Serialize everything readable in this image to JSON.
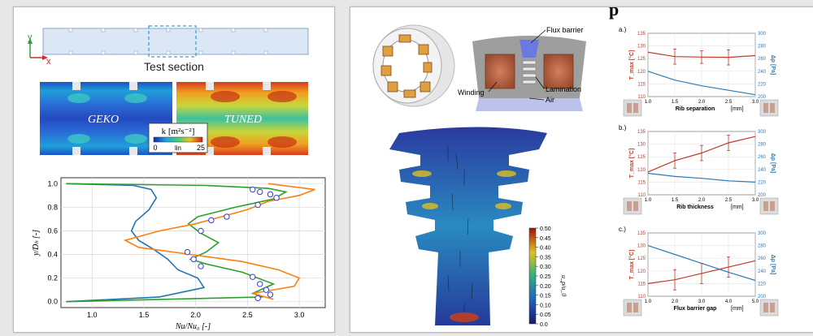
{
  "left": {
    "axis_y_label": "y",
    "axis_x_label": "x",
    "test_section_label": "Test section",
    "field_left_label": "GEKO",
    "field_right_label": "TUNED",
    "colorbar_title": "k [m²s⁻²]",
    "colorbar_min": "0",
    "colorbar_mid": "lin",
    "colorbar_max": "25"
  },
  "right": {
    "banner_fragment": "p",
    "flux_barrier_label": "Flux barrier",
    "winding_label": "Winding",
    "lamination_label": "Lamination",
    "air_label": "Air",
    "velocity_colorbar_label": "u_p/u_0",
    "velocity_colorbar_ticks": [
      "0.50",
      "0.45",
      "0.40",
      "0.35",
      "0.30",
      "0.25",
      "0.20",
      "0.15",
      "0.10",
      "0.05",
      "0.0"
    ]
  },
  "chart_data": [
    {
      "type": "line",
      "xlabel": "Nu/Nu₀ [-]",
      "ylabel": "y/Dₕ [-]",
      "xlim": [
        0.7,
        3.25
      ],
      "ylim": [
        -0.05,
        1.05
      ],
      "x_ticks": [
        "1.0",
        "1.5",
        "2.0",
        "2.5",
        "3.0"
      ],
      "y_ticks": [
        "0.0",
        "0.2",
        "0.4",
        "0.6",
        "0.8",
        "1.0"
      ],
      "grid": true,
      "colors": {
        "blue": "#1f77b4",
        "green": "#2ca02c",
        "orange": "#ff7f0e",
        "marker": "#3b3bd0"
      },
      "series": [
        {
          "values_xy": [
            [
              0.75,
              1.0
            ],
            [
              1.4,
              0.985
            ],
            [
              1.57,
              0.95
            ],
            [
              1.62,
              0.88
            ],
            [
              1.55,
              0.78
            ],
            [
              1.42,
              0.68
            ],
            [
              1.38,
              0.6
            ],
            [
              1.45,
              0.52
            ],
            [
              1.6,
              0.44
            ],
            [
              1.73,
              0.36
            ],
            [
              1.83,
              0.27
            ],
            [
              2.02,
              0.2
            ],
            [
              2.08,
              0.12
            ],
            [
              1.65,
              0.04
            ],
            [
              0.75,
              0.0
            ]
          ]
        },
        {
          "values_xy": [
            [
              0.75,
              1.0
            ],
            [
              2.1,
              0.985
            ],
            [
              2.7,
              0.96
            ],
            [
              2.87,
              0.93
            ],
            [
              2.75,
              0.87
            ],
            [
              2.38,
              0.8
            ],
            [
              2.02,
              0.72
            ],
            [
              1.93,
              0.66
            ],
            [
              2.05,
              0.58
            ],
            [
              2.22,
              0.5
            ],
            [
              2.1,
              0.42
            ],
            [
              1.95,
              0.36
            ],
            [
              2.1,
              0.32
            ],
            [
              2.45,
              0.25
            ],
            [
              2.75,
              0.15
            ],
            [
              2.55,
              0.07
            ],
            [
              2.65,
              0.04
            ],
            [
              0.75,
              0.0
            ]
          ]
        },
        {
          "values_xy": [
            [
              2.7,
              1.0
            ],
            [
              3.15,
              0.95
            ],
            [
              3.0,
              0.9
            ],
            [
              2.7,
              0.85
            ],
            [
              2.5,
              0.78
            ],
            [
              2.25,
              0.72
            ],
            [
              2.0,
              0.66
            ],
            [
              1.65,
              0.6
            ],
            [
              1.32,
              0.52
            ],
            [
              1.45,
              0.46
            ],
            [
              1.95,
              0.4
            ],
            [
              2.45,
              0.34
            ],
            [
              2.8,
              0.27
            ],
            [
              3.0,
              0.2
            ],
            [
              2.95,
              0.13
            ],
            [
              2.55,
              0.07
            ],
            [
              2.75,
              0.02
            ]
          ]
        }
      ],
      "markers_xy": [
        [
          2.55,
          0.95
        ],
        [
          2.62,
          0.93
        ],
        [
          2.72,
          0.91
        ],
        [
          2.78,
          0.88
        ],
        [
          2.6,
          0.82
        ],
        [
          2.3,
          0.72
        ],
        [
          2.15,
          0.69
        ],
        [
          2.05,
          0.6
        ],
        [
          1.92,
          0.42
        ],
        [
          1.98,
          0.36
        ],
        [
          2.05,
          0.3
        ],
        [
          2.55,
          0.21
        ],
        [
          2.62,
          0.15
        ],
        [
          2.68,
          0.1
        ],
        [
          2.72,
          0.06
        ],
        [
          2.6,
          0.03
        ]
      ]
    },
    {
      "type": "line",
      "panel_label": "a.)",
      "xlabel": "Rib separation",
      "xunit": "[mm]",
      "ylabel_left": "T_max [°C]",
      "ylabel_right": "Δp [Pa]",
      "xlim": [
        1.0,
        3.0
      ],
      "x_ticks": [
        "1.0",
        "1.5",
        "2.0",
        "2.5",
        "3.0"
      ],
      "ylim_left": [
        110,
        135
      ],
      "y_ticks_left": [
        "110",
        "115",
        "120",
        "125",
        "130",
        "135"
      ],
      "ylim_right": [
        200,
        300
      ],
      "y_ticks_right": [
        "200",
        "220",
        "240",
        "260",
        "280",
        "300"
      ],
      "series": [
        {
          "axis": "left",
          "color": "#c0392b",
          "x": [
            1.0,
            1.5,
            2.0,
            2.5,
            3.0
          ],
          "values": [
            127.5,
            125.8,
            125.6,
            125.5,
            126.2
          ],
          "err": [
            0,
            3,
            2.5,
            3,
            0
          ]
        },
        {
          "axis": "right",
          "color": "#2a7ab8",
          "x": [
            1.0,
            1.5,
            2.0,
            2.5,
            3.0
          ],
          "values": [
            240,
            226,
            217,
            210,
            203
          ]
        }
      ]
    },
    {
      "type": "line",
      "panel_label": "b.)",
      "xlabel": "Rib thickness",
      "xunit": "[mm]",
      "ylabel_left": "T_max [°C]",
      "ylabel_right": "Δp [Pa]",
      "xlim": [
        1.0,
        3.0
      ],
      "x_ticks": [
        "1.0",
        "1.5",
        "2.0",
        "2.5",
        "3.0"
      ],
      "ylim_left": [
        110,
        135
      ],
      "y_ticks_left": [
        "110",
        "115",
        "120",
        "125",
        "130",
        "135"
      ],
      "ylim_right": [
        200,
        300
      ],
      "y_ticks_right": [
        "200",
        "220",
        "240",
        "260",
        "280",
        "300"
      ],
      "series": [
        {
          "axis": "left",
          "color": "#c0392b",
          "x": [
            1.0,
            1.5,
            2.0,
            2.5,
            3.0
          ],
          "values": [
            119,
            123.5,
            126.5,
            130.5,
            133
          ],
          "err": [
            0,
            3,
            3,
            3,
            0
          ]
        },
        {
          "axis": "right",
          "color": "#2a7ab8",
          "x": [
            1.0,
            1.5,
            2.0,
            2.5,
            3.0
          ],
          "values": [
            234,
            229,
            226,
            222,
            220
          ]
        }
      ]
    },
    {
      "type": "line",
      "panel_label": "c.)",
      "xlabel": "Flux barrier gap",
      "xunit": "[mm]",
      "ylabel_left": "T_max [°C]",
      "ylabel_right": "Δp [Pa]",
      "xlim": [
        1.0,
        5.0
      ],
      "x_ticks": [
        "1.0",
        "2.0",
        "3.0",
        "4.0",
        "5.0"
      ],
      "ylim_left": [
        110,
        135
      ],
      "y_ticks_left": [
        "110",
        "115",
        "120",
        "125",
        "130",
        "135"
      ],
      "ylim_right": [
        200,
        300
      ],
      "y_ticks_right": [
        "200",
        "220",
        "240",
        "260",
        "280",
        "300"
      ],
      "series": [
        {
          "axis": "left",
          "color": "#c0392b",
          "x": [
            1.0,
            2.0,
            3.0,
            4.0,
            5.0
          ],
          "values": [
            115,
            116.5,
            119,
            121.5,
            124
          ],
          "err": [
            0,
            4,
            4,
            4,
            0
          ]
        },
        {
          "axis": "right",
          "color": "#2a7ab8",
          "x": [
            1.0,
            2.0,
            3.0,
            4.0,
            5.0
          ],
          "values": [
            280,
            266,
            252,
            238,
            225
          ]
        }
      ]
    }
  ]
}
